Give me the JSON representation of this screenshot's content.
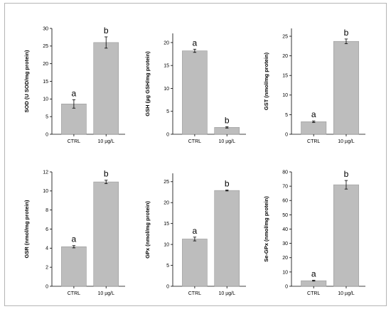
{
  "chart_data": [
    {
      "type": "bar",
      "categories": [
        "CTRL",
        "10 µg/L"
      ],
      "values": [
        8.6,
        26.0
      ],
      "errors": [
        1.2,
        1.6
      ],
      "significance": [
        "a",
        "b"
      ],
      "ylabel": "SOD (U SOD/mg protein)",
      "ylim": [
        0,
        30
      ],
      "yticks": [
        0,
        5,
        10,
        15,
        20,
        25,
        30
      ]
    },
    {
      "type": "bar",
      "categories": [
        "CTRL",
        "10 µg/L"
      ],
      "values": [
        18.2,
        1.5
      ],
      "errors": [
        0.35,
        0.15
      ],
      "significance": [
        "a",
        "b"
      ],
      "ylabel": "GSH (µg GSH/mg protein)",
      "ylim": [
        0,
        22
      ],
      "yticks": [
        0,
        5,
        10,
        15,
        20
      ]
    },
    {
      "type": "bar",
      "categories": [
        "CTRL",
        "10 µg/L"
      ],
      "values": [
        3.2,
        23.7
      ],
      "errors": [
        0.2,
        0.6
      ],
      "significance": [
        "a",
        "b"
      ],
      "ylabel": "GST (nmol/mg protein)",
      "ylim": [
        0,
        27
      ],
      "yticks": [
        0,
        5,
        10,
        15,
        20,
        25
      ]
    },
    {
      "type": "bar",
      "categories": [
        "CTRL",
        "10 µg/L"
      ],
      "values": [
        4.15,
        10.95
      ],
      "errors": [
        0.12,
        0.18
      ],
      "significance": [
        "a",
        "b"
      ],
      "ylabel": "GSR (nmol/mg protein)",
      "ylim": [
        0,
        12
      ],
      "yticks": [
        0,
        2,
        4,
        6,
        8,
        10,
        12
      ]
    },
    {
      "type": "bar",
      "categories": [
        "CTRL",
        "10 µg/L"
      ],
      "values": [
        11.3,
        22.9
      ],
      "errors": [
        0.45,
        0.12
      ],
      "significance": [
        "a",
        "b"
      ],
      "ylabel": "GPx (nmol/mg protein)",
      "ylim": [
        0,
        27
      ],
      "yticks": [
        0,
        5,
        10,
        15,
        20,
        25
      ]
    },
    {
      "type": "bar",
      "categories": [
        "CTRL",
        "10 µg/L"
      ],
      "values": [
        3.9,
        71.0
      ],
      "errors": [
        0.3,
        3.0
      ],
      "significance": [
        "a",
        "b"
      ],
      "ylabel": "Se-GPx (nmol/mg protein)",
      "ylim": [
        0,
        80
      ],
      "yticks": [
        0,
        10,
        20,
        30,
        40,
        50,
        60,
        70,
        80
      ]
    }
  ]
}
